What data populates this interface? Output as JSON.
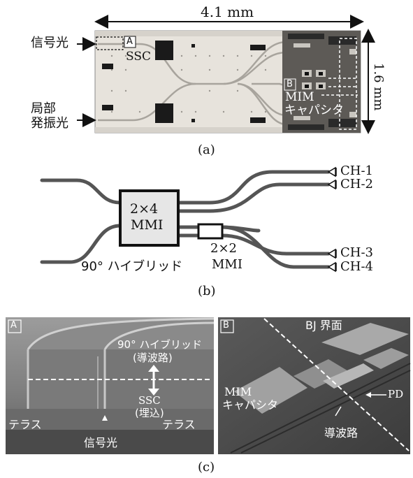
{
  "panel_a": {
    "width_label": "4.1 mm",
    "height_label": "1.6 mm",
    "signal_light": "信号光",
    "local_osc_line1": "局部",
    "local_osc_line2": "発振光",
    "marker_a": "A",
    "marker_b": "B",
    "ssc": "SSC",
    "mim_line1": "MIM",
    "mim_line2": "キャパシタ",
    "caption": "(a)"
  },
  "panel_b": {
    "mmi_2x4_line1": "2×4",
    "mmi_2x4_line2": "MMI",
    "mmi_2x2_line1": "2×2",
    "mmi_2x2_line2": "MMI",
    "hybrid_label": "90° ハイブリッド",
    "channels": [
      "CH-1",
      "CH-2",
      "CH-3",
      "CH-4"
    ],
    "caption": "(b)"
  },
  "panel_c": {
    "left": {
      "marker": "A",
      "hybrid_line1": "90° ハイブリッド",
      "hybrid_line2": "(導波路)",
      "ssc_line1": "SSC",
      "ssc_line2": "(埋込)",
      "terrace_left": "テラス",
      "terrace_right": "テラス",
      "signal": "信号光"
    },
    "right": {
      "marker": "B",
      "bj_interface": "BJ 界面",
      "mim_line1": "MIM",
      "mim_line2": "キャパシタ",
      "pd": "PD",
      "waveguide": "導波路"
    },
    "caption": "(c)"
  }
}
